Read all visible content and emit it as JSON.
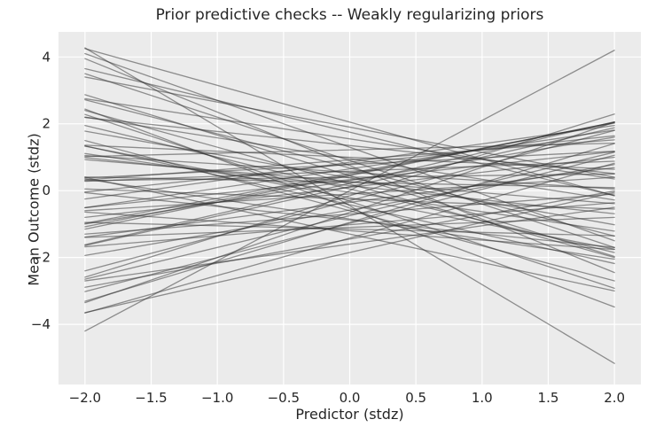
{
  "figure": {
    "title": "Prior predictive checks -- Weakly regularizing priors",
    "xlabel": "Predictor (stdz)",
    "ylabel": "Mean Outcome (stdz)"
  },
  "chart_data": {
    "type": "line",
    "title": "Prior predictive checks -- Weakly regularizing priors",
    "xlabel": "Predictor (stdz)",
    "ylabel": "Mean Outcome (stdz)",
    "xlim": [
      -2.2,
      2.2
    ],
    "ylim": [
      -5.8,
      4.75
    ],
    "xticks": [
      -2.0,
      -1.5,
      -1.0,
      -0.5,
      0.0,
      0.5,
      1.0,
      1.5,
      2.0
    ],
    "xtick_labels": [
      "−2.0",
      "−1.5",
      "−1.0",
      "−0.5",
      "0.0",
      "0.5",
      "1.0",
      "1.5",
      "2.0"
    ],
    "yticks": [
      -4,
      -2,
      0,
      2,
      4
    ],
    "ytick_labels": [
      "−4",
      "−2",
      "0",
      "2",
      "4"
    ],
    "x_range_of_lines": [
      -2,
      2
    ],
    "grid": true,
    "legend": false,
    "panel_color": "#ebebeb",
    "grid_color": "#ffffff",
    "line_color": "rgba(45,45,45,0.5)",
    "line_width": 1.3,
    "description": "Spaghetti plot of prior predictive regression lines y = intercept + slope * x drawn over x in [-2, 2]",
    "lines": [
      {
        "intercept": -0.45,
        "slope": -2.36
      },
      {
        "intercept": 0.0,
        "slope": 2.1
      },
      {
        "intercept": 0.96,
        "slope": -0.62
      },
      {
        "intercept": -0.3,
        "slope": 1.05
      },
      {
        "intercept": 0.45,
        "slope": -1.21
      },
      {
        "intercept": -1.02,
        "slope": 0.33
      },
      {
        "intercept": 0.12,
        "slope": 0.88
      },
      {
        "intercept": 1.75,
        "slope": -0.95
      },
      {
        "intercept": -0.88,
        "slope": -0.41
      },
      {
        "intercept": 0.33,
        "slope": 0.42
      },
      {
        "intercept": 2.05,
        "slope": -1.1
      },
      {
        "intercept": -1.45,
        "slope": 0.72
      },
      {
        "intercept": 0.58,
        "slope": 0.15
      },
      {
        "intercept": -0.21,
        "slope": -0.77
      },
      {
        "intercept": 0.52,
        "slope": 0.75
      },
      {
        "intercept": -0.95,
        "slope": 1.18
      },
      {
        "intercept": 0.27,
        "slope": -0.33
      },
      {
        "intercept": 1.3,
        "slope": -1.4
      },
      {
        "intercept": -0.6,
        "slope": -1.05
      },
      {
        "intercept": 0.8,
        "slope": 0.42
      },
      {
        "intercept": -1.2,
        "slope": -0.28
      },
      {
        "intercept": 0.05,
        "slope": -0.95
      },
      {
        "intercept": 0.45,
        "slope": 0.8
      },
      {
        "intercept": -0.35,
        "slope": 0.52
      },
      {
        "intercept": 1.0,
        "slope": -0.18
      },
      {
        "intercept": -0.75,
        "slope": 0.95
      },
      {
        "intercept": 0.22,
        "slope": 0.92
      },
      {
        "intercept": -1.6,
        "slope": 0.55
      },
      {
        "intercept": 0.9,
        "slope": -1.3
      },
      {
        "intercept": -0.1,
        "slope": 0.25
      },
      {
        "intercept": 0.38,
        "slope": -0.7
      },
      {
        "intercept": -0.52,
        "slope": -1.48
      },
      {
        "intercept": 1.22,
        "slope": 0.1
      },
      {
        "intercept": -0.98,
        "slope": 1.02
      },
      {
        "intercept": 0.15,
        "slope": -0.42
      },
      {
        "intercept": 0.65,
        "slope": 0.58
      },
      {
        "intercept": -1.3,
        "slope": -0.85
      },
      {
        "intercept": 0.48,
        "slope": 0.78
      },
      {
        "intercept": -0.25,
        "slope": -0.15
      },
      {
        "intercept": 1.55,
        "slope": -0.6
      },
      {
        "intercept": -0.7,
        "slope": 0.3
      },
      {
        "intercept": 0.3,
        "slope": 0.65
      },
      {
        "intercept": -1.85,
        "slope": 0.9
      },
      {
        "intercept": 0.85,
        "slope": 0.55
      },
      {
        "intercept": -0.42,
        "slope": -0.88
      },
      {
        "intercept": 0.75,
        "slope": -1.6
      },
      {
        "intercept": -0.15,
        "slope": 1.22
      },
      {
        "intercept": 0.55,
        "slope": -0.25
      },
      {
        "intercept": -1.1,
        "slope": 0.15
      },
      {
        "intercept": 0.2,
        "slope": -1.1
      },
      {
        "intercept": 0.92,
        "slope": 0.3
      },
      {
        "intercept": -0.58,
        "slope": 0.68
      },
      {
        "intercept": 1.35,
        "slope": -0.42
      },
      {
        "intercept": -0.85,
        "slope": -0.6
      },
      {
        "intercept": 0.4,
        "slope": 0.05
      },
      {
        "intercept": -0.05,
        "slope": -0.58
      },
      {
        "intercept": 0.68,
        "slope": -1.02
      },
      {
        "intercept": -1.42,
        "slope": 1.12
      },
      {
        "intercept": 0.1,
        "slope": 0.45
      },
      {
        "intercept": -0.32,
        "slope": -1.3
      },
      {
        "intercept": 1.9,
        "slope": -0.75
      },
      {
        "intercept": -0.65,
        "slope": 1.35
      },
      {
        "intercept": 0.25,
        "slope": -0.08
      },
      {
        "intercept": -1.15,
        "slope": -0.1
      },
      {
        "intercept": 0.78,
        "slope": 0.2
      }
    ]
  }
}
